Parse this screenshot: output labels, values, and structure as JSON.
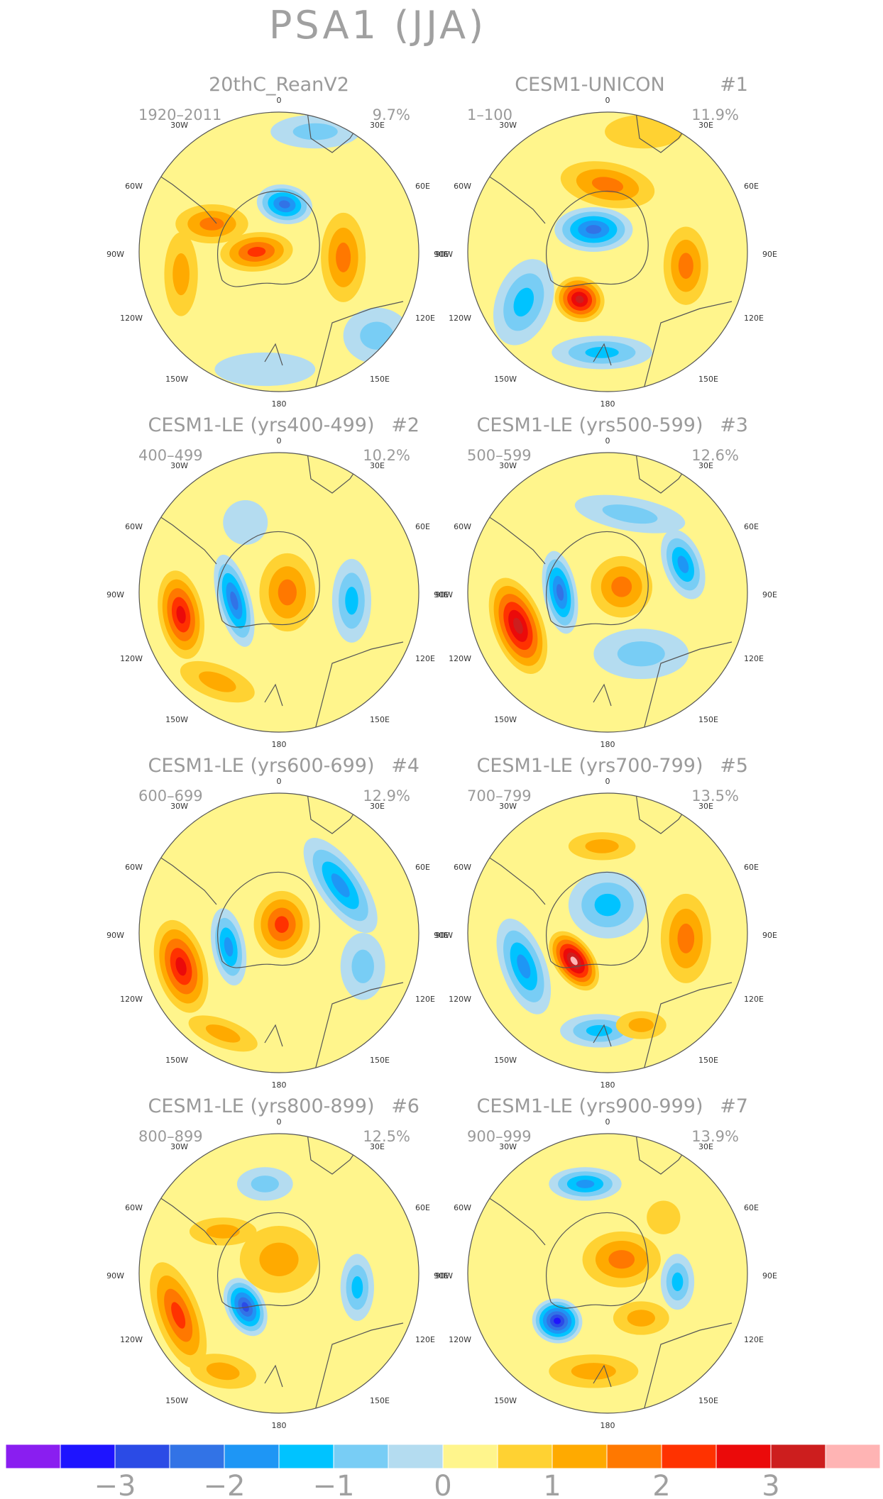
{
  "title": "PSA1 (JJA)",
  "lon_labels": [
    "0",
    "30E",
    "60E",
    "90E",
    "120E",
    "150E",
    "180",
    "150W",
    "120W",
    "90W",
    "60W",
    "30W"
  ],
  "colorbar": {
    "colors": [
      "#8a1ef0",
      "#1e14ff",
      "#2b4be6",
      "#3273e6",
      "#1e96f5",
      "#00c3ff",
      "#78cdf5",
      "#b4dcf0",
      "#fff58c",
      "#ffd232",
      "#ffaa00",
      "#ff7800",
      "#ff3200",
      "#eb0a0a",
      "#cd1e1e",
      "#ffb4b4"
    ],
    "tick_labels": [
      "−3",
      "−2",
      "−1",
      "0",
      "1",
      "2",
      "3"
    ]
  },
  "panels": [
    {
      "name": "20thC_ReanV2",
      "run": "",
      "years": "1920–2011",
      "variance": "9.7%",
      "blobs": [
        {
          "c": 0.42,
          "r": 0.5,
          "v": 2.0,
          "a": 0.13,
          "b": 0.07,
          "rot": -5
        },
        {
          "c": 0.52,
          "r": 0.33,
          "v": -2.5,
          "a": 0.1,
          "b": 0.07,
          "rot": 10
        },
        {
          "c": 0.26,
          "r": 0.4,
          "v": 1.3,
          "a": 0.13,
          "b": 0.07,
          "rot": 0
        },
        {
          "c": 0.73,
          "r": 0.52,
          "v": 1.7,
          "a": 0.08,
          "b": 0.16,
          "rot": 0
        },
        {
          "c": 0.85,
          "r": 0.8,
          "v": -0.8,
          "a": 0.12,
          "b": 0.1,
          "rot": 0
        },
        {
          "c": 0.63,
          "r": 0.07,
          "v": -0.8,
          "a": 0.16,
          "b": 0.06,
          "rot": 0
        },
        {
          "c": 0.45,
          "r": 0.92,
          "v": -0.6,
          "a": 0.18,
          "b": 0.06,
          "rot": 0
        },
        {
          "c": 0.15,
          "r": 0.58,
          "v": 0.8,
          "a": 0.06,
          "b": 0.15,
          "rot": 0
        }
      ]
    },
    {
      "name": "CESM1-UNICON",
      "run": "#1",
      "years": "1–100",
      "variance": "11.9%",
      "blobs": [
        {
          "c": 0.4,
          "r": 0.67,
          "v": 3.0,
          "a": 0.09,
          "b": 0.08,
          "rot": 20
        },
        {
          "c": 0.45,
          "r": 0.42,
          "v": -2.3,
          "a": 0.14,
          "b": 0.08,
          "rot": 0
        },
        {
          "c": 0.5,
          "r": 0.26,
          "v": 1.6,
          "a": 0.17,
          "b": 0.08,
          "rot": 10
        },
        {
          "c": 0.78,
          "r": 0.55,
          "v": 1.6,
          "a": 0.08,
          "b": 0.14,
          "rot": 0
        },
        {
          "c": 0.2,
          "r": 0.68,
          "v": -1.4,
          "a": 0.1,
          "b": 0.16,
          "rot": 20
        },
        {
          "c": 0.48,
          "r": 0.86,
          "v": -1.5,
          "a": 0.18,
          "b": 0.06,
          "rot": 0
        },
        {
          "c": 0.63,
          "r": 0.07,
          "v": 0.4,
          "a": 0.14,
          "b": 0.06,
          "rot": 0
        }
      ]
    },
    {
      "name": "CESM1-LE (yrs400-499)",
      "run": "#2",
      "years": "400–499",
      "variance": "10.2%",
      "blobs": [
        {
          "c": 0.15,
          "r": 0.58,
          "v": 2.4,
          "a": 0.08,
          "b": 0.16,
          "rot": -10
        },
        {
          "c": 0.34,
          "r": 0.53,
          "v": -2.5,
          "a": 0.06,
          "b": 0.17,
          "rot": -15
        },
        {
          "c": 0.53,
          "r": 0.5,
          "v": 1.4,
          "a": 0.1,
          "b": 0.14,
          "rot": 0
        },
        {
          "c": 0.76,
          "r": 0.53,
          "v": -1.6,
          "a": 0.07,
          "b": 0.15,
          "rot": 0
        },
        {
          "c": 0.28,
          "r": 0.82,
          "v": 1.0,
          "a": 0.14,
          "b": 0.06,
          "rot": 20
        },
        {
          "c": 0.38,
          "r": 0.25,
          "v": -0.5,
          "a": 0.08,
          "b": 0.08,
          "rot": 0
        }
      ]
    },
    {
      "name": "CESM1-LE (yrs500-599)",
      "run": "#3",
      "years": "500–599",
      "variance": "12.6%",
      "blobs": [
        {
          "c": 0.18,
          "r": 0.62,
          "v": 2.8,
          "a": 0.09,
          "b": 0.18,
          "rot": -20
        },
        {
          "c": 0.33,
          "r": 0.5,
          "v": -2.5,
          "a": 0.06,
          "b": 0.15,
          "rot": -10
        },
        {
          "c": 0.55,
          "r": 0.48,
          "v": 1.7,
          "a": 0.11,
          "b": 0.11,
          "rot": 0
        },
        {
          "c": 0.77,
          "r": 0.4,
          "v": -1.8,
          "a": 0.07,
          "b": 0.13,
          "rot": -20
        },
        {
          "c": 0.58,
          "r": 0.22,
          "v": -1.0,
          "a": 0.2,
          "b": 0.06,
          "rot": 10
        },
        {
          "c": 0.62,
          "r": 0.72,
          "v": -0.8,
          "a": 0.17,
          "b": 0.09,
          "rot": 0
        }
      ]
    },
    {
      "name": "CESM1-LE (yrs600-699)",
      "run": "#4",
      "years": "600–699",
      "variance": "12.9%",
      "blobs": [
        {
          "c": 0.15,
          "r": 0.62,
          "v": 2.6,
          "a": 0.09,
          "b": 0.17,
          "rot": -15
        },
        {
          "c": 0.32,
          "r": 0.55,
          "v": -2.1,
          "a": 0.06,
          "b": 0.14,
          "rot": -10
        },
        {
          "c": 0.51,
          "r": 0.47,
          "v": 2.2,
          "a": 0.1,
          "b": 0.12,
          "rot": 0
        },
        {
          "c": 0.72,
          "r": 0.33,
          "v": -1.8,
          "a": 0.08,
          "b": 0.2,
          "rot": -35
        },
        {
          "c": 0.8,
          "r": 0.62,
          "v": -0.9,
          "a": 0.08,
          "b": 0.12,
          "rot": 0
        },
        {
          "c": 0.3,
          "r": 0.86,
          "v": 0.8,
          "a": 0.13,
          "b": 0.05,
          "rot": 20
        }
      ]
    },
    {
      "name": "CESM1-LE (yrs700-799)",
      "run": "#5",
      "years": "700–799",
      "variance": "13.5%",
      "blobs": [
        {
          "c": 0.38,
          "r": 0.6,
          "v": 3.6,
          "a": 0.07,
          "b": 0.12,
          "rot": -35
        },
        {
          "c": 0.5,
          "r": 0.4,
          "v": -1.6,
          "a": 0.14,
          "b": 0.12,
          "rot": 0
        },
        {
          "c": 0.2,
          "r": 0.62,
          "v": -1.8,
          "a": 0.08,
          "b": 0.18,
          "rot": -20
        },
        {
          "c": 0.47,
          "r": 0.85,
          "v": -1.6,
          "a": 0.14,
          "b": 0.06,
          "rot": 0
        },
        {
          "c": 0.78,
          "r": 0.52,
          "v": 1.4,
          "a": 0.09,
          "b": 0.16,
          "rot": 0
        },
        {
          "c": 0.48,
          "r": 0.19,
          "v": 1.2,
          "a": 0.12,
          "b": 0.05,
          "rot": 0
        },
        {
          "c": 0.62,
          "r": 0.83,
          "v": 0.8,
          "a": 0.09,
          "b": 0.05,
          "rot": 0
        }
      ]
    },
    {
      "name": "CESM1-LE (yrs800-899)",
      "run": "#6",
      "years": "800–899",
      "variance": "12.5%",
      "blobs": [
        {
          "c": 0.38,
          "r": 0.62,
          "v": -3.0,
          "a": 0.07,
          "b": 0.11,
          "rot": -25
        },
        {
          "c": 0.14,
          "r": 0.65,
          "v": 2.0,
          "a": 0.08,
          "b": 0.2,
          "rot": -20
        },
        {
          "c": 0.5,
          "r": 0.45,
          "v": 1.2,
          "a": 0.14,
          "b": 0.12,
          "rot": 0
        },
        {
          "c": 0.78,
          "r": 0.55,
          "v": -1.6,
          "a": 0.06,
          "b": 0.12,
          "rot": 0
        },
        {
          "c": 0.45,
          "r": 0.18,
          "v": -1.2,
          "a": 0.1,
          "b": 0.06,
          "rot": 0
        },
        {
          "c": 0.3,
          "r": 0.35,
          "v": 0.8,
          "a": 0.12,
          "b": 0.05,
          "rot": 0
        },
        {
          "c": 0.3,
          "r": 0.85,
          "v": 1.2,
          "a": 0.12,
          "b": 0.06,
          "rot": 10
        }
      ]
    },
    {
      "name": "CESM1-LE (yrs900-999)",
      "run": "#7",
      "years": "900–999",
      "variance": "13.9%",
      "blobs": [
        {
          "c": 0.32,
          "r": 0.67,
          "v": -3.4,
          "a": 0.09,
          "b": 0.08,
          "rot": 10
        },
        {
          "c": 0.42,
          "r": 0.18,
          "v": -1.9,
          "a": 0.13,
          "b": 0.06,
          "rot": 0
        },
        {
          "c": 0.55,
          "r": 0.45,
          "v": 1.3,
          "a": 0.14,
          "b": 0.1,
          "rot": 0
        },
        {
          "c": 0.75,
          "r": 0.53,
          "v": -1.7,
          "a": 0.06,
          "b": 0.1,
          "rot": 0
        },
        {
          "c": 0.45,
          "r": 0.85,
          "v": 1.2,
          "a": 0.16,
          "b": 0.06,
          "rot": 0
        },
        {
          "c": 0.62,
          "r": 0.66,
          "v": 0.8,
          "a": 0.1,
          "b": 0.06,
          "rot": 0
        },
        {
          "c": 0.7,
          "r": 0.3,
          "v": 0.6,
          "a": 0.06,
          "b": 0.06,
          "rot": 0
        }
      ]
    }
  ]
}
